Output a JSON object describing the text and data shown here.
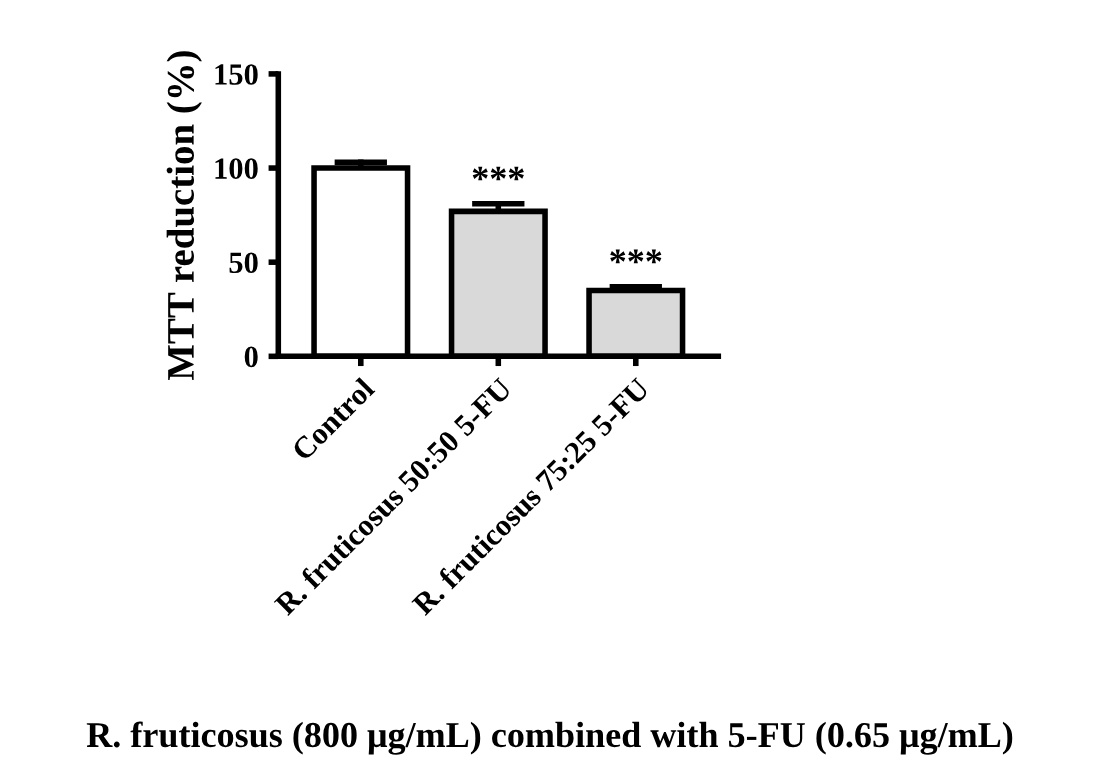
{
  "chart_data": {
    "type": "bar",
    "categories": [
      "Control",
      "R. fruticosus 50:50 5-FU",
      "R. fruticosus 75:25 5-FU"
    ],
    "values": [
      100,
      77,
      35
    ],
    "errors": [
      [
        100,
        103
      ],
      [
        77,
        81
      ],
      [
        35,
        37
      ]
    ],
    "colors": [
      "#ffffff",
      "#d9d9d9",
      "#d9d9d9"
    ],
    "ylabel": "MTT reduction (%)",
    "xlabel": "R. fruticosus (800 μg/mL) combined with 5-FU (0.65 μg/mL)",
    "ylim": [
      0,
      150
    ],
    "yticks": [
      0,
      50,
      100,
      150
    ],
    "annotations": [
      {
        "text": "***",
        "x": "R. fruticosus 50:50 5-FU",
        "y": 81
      },
      {
        "text": "***",
        "x": "R. fruticosus 75:25 5-FU",
        "y": 37
      }
    ],
    "grid": false
  }
}
